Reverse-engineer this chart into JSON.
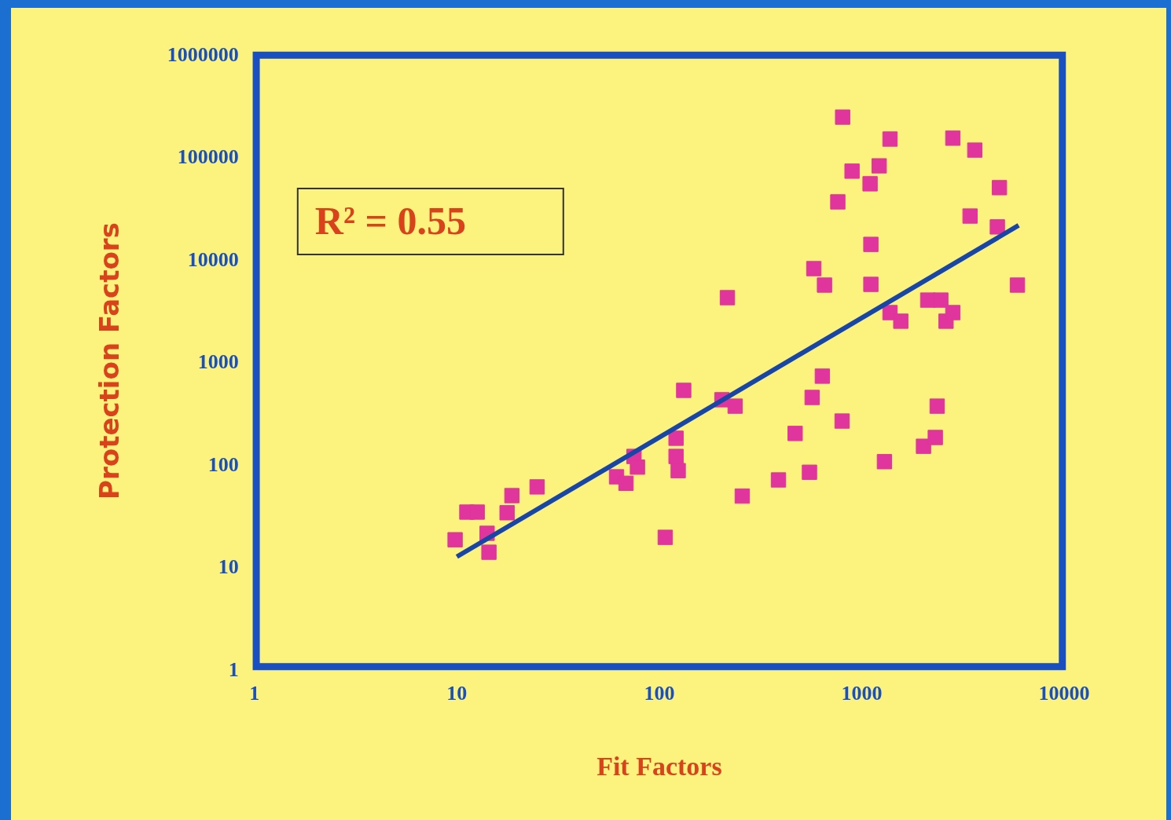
{
  "chart_data": {
    "type": "scatter",
    "xlabel": "Fit Factors",
    "ylabel": "Protection Factors",
    "annotations": [
      "R² = 0.55"
    ],
    "xlim": [
      1,
      10000
    ],
    "ylim": [
      1,
      1000000
    ],
    "xticks": [
      1,
      10,
      100,
      1000,
      10000
    ],
    "yticks": [
      1,
      10,
      100,
      1000,
      10000,
      100000,
      1000000
    ],
    "log": "xy",
    "grid": false,
    "legend": false,
    "marker": "square",
    "series": [
      {
        "color": "#e0359c",
        "x": [
          9.8,
          11.2,
          12.6,
          14.1,
          14.4,
          17.7,
          18.7,
          24.9,
          61.5,
          68.5,
          75,
          78,
          121,
          121,
          124,
          107,
          132,
          217,
          204,
          237,
          257,
          388,
          469,
          552,
          569,
          639,
          800,
          805,
          762,
          896,
          1100,
          1220,
          1380,
          1110,
          1110,
          580,
          655,
          1380,
          1560,
          1295,
          2020,
          2310,
          2360,
          2120,
          2460,
          2610,
          2820,
          2820,
          3620,
          3430,
          4790,
          4680,
          5880
        ],
        "values": [
          18,
          33.5,
          33.5,
          20.8,
          13.6,
          33,
          48.5,
          59,
          74,
          64,
          117,
          92,
          176,
          117,
          85,
          19,
          516,
          4140,
          418,
          362,
          48,
          69,
          196,
          82,
          440,
          710,
          259,
          239000,
          35600,
          71000,
          53500,
          80000,
          146000,
          13700,
          5580,
          7950,
          5490,
          2960,
          2440,
          104,
          147,
          179,
          362,
          3920,
          3920,
          2440,
          2960,
          149000,
          114000,
          25900,
          49000,
          20300,
          5490
        ]
      },
      {
        "type": "line",
        "color": "#1846a8",
        "line_style": "solid",
        "marker": "none",
        "x": [
          10,
          5960
        ],
        "values": [
          12.3,
          21000
        ]
      }
    ]
  }
}
